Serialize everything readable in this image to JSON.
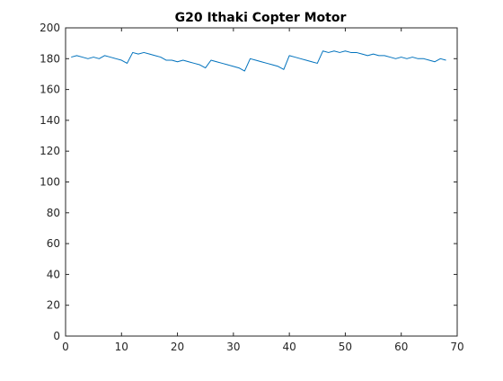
{
  "chart_data": {
    "type": "line",
    "title": "G20 Ithaki Copter Motor",
    "xlabel": "",
    "ylabel": "",
    "xlim": [
      0,
      70
    ],
    "ylim": [
      0,
      200
    ],
    "xticks": [
      0,
      10,
      20,
      30,
      40,
      50,
      60,
      70
    ],
    "yticks": [
      0,
      20,
      40,
      60,
      80,
      100,
      120,
      140,
      160,
      180,
      200
    ],
    "grid": false,
    "legend": "none",
    "series": [
      {
        "name": "Motor",
        "color": "#0072BD",
        "x": [
          1,
          2,
          3,
          4,
          5,
          6,
          7,
          8,
          9,
          10,
          11,
          12,
          13,
          14,
          15,
          16,
          17,
          18,
          19,
          20,
          21,
          22,
          23,
          24,
          25,
          26,
          27,
          28,
          29,
          30,
          31,
          32,
          33,
          34,
          35,
          36,
          37,
          38,
          39,
          40,
          41,
          42,
          43,
          44,
          45,
          46,
          47,
          48,
          49,
          50,
          51,
          52,
          53,
          54,
          55,
          56,
          57,
          58,
          59,
          60,
          61,
          62,
          63,
          64,
          65,
          66,
          67,
          68
        ],
        "y": [
          181,
          182,
          181,
          180,
          181,
          180,
          182,
          181,
          180,
          179,
          177,
          184,
          183,
          184,
          183,
          182,
          181,
          179,
          179,
          178,
          179,
          178,
          177,
          176,
          174,
          179,
          178,
          177,
          176,
          175,
          174,
          172,
          180,
          179,
          178,
          177,
          176,
          175,
          173,
          182,
          181,
          180,
          179,
          178,
          177,
          185,
          184,
          185,
          184,
          185,
          184,
          184,
          183,
          182,
          183,
          182,
          182,
          181,
          180,
          181,
          180,
          181,
          180,
          180,
          179,
          178,
          180,
          179
        ]
      }
    ]
  }
}
